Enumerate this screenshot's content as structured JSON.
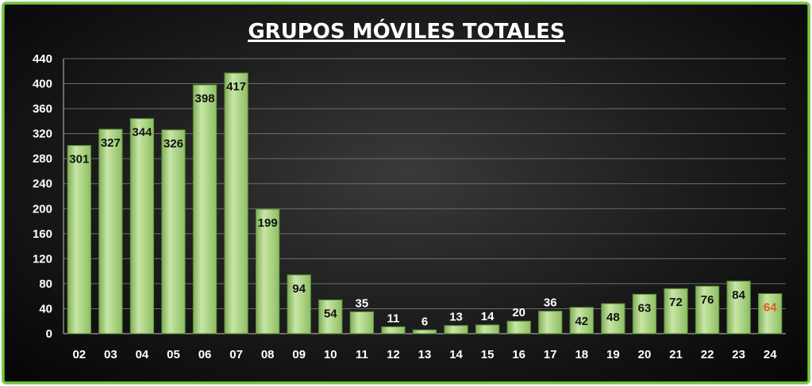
{
  "chart_data": {
    "type": "bar",
    "title": "GRUPOS MÓVILES TOTALES",
    "categories": [
      "02",
      "03",
      "04",
      "05",
      "06",
      "07",
      "08",
      "09",
      "10",
      "11",
      "12",
      "13",
      "14",
      "15",
      "16",
      "17",
      "18",
      "19",
      "20",
      "21",
      "22",
      "23",
      "24"
    ],
    "values": [
      301,
      327,
      344,
      326,
      398,
      417,
      199,
      94,
      54,
      35,
      11,
      6,
      13,
      14,
      20,
      36,
      42,
      48,
      63,
      72,
      76,
      84,
      64
    ],
    "ylim": [
      0,
      440
    ],
    "yticks": [
      "0",
      "40",
      "80",
      "120",
      "160",
      "200",
      "240",
      "280",
      "320",
      "360",
      "400",
      "440"
    ],
    "grid": true,
    "highlight_last_label_color": "#e8561f",
    "bar_color": "#a7d37e",
    "border_color": "#7ac943"
  }
}
